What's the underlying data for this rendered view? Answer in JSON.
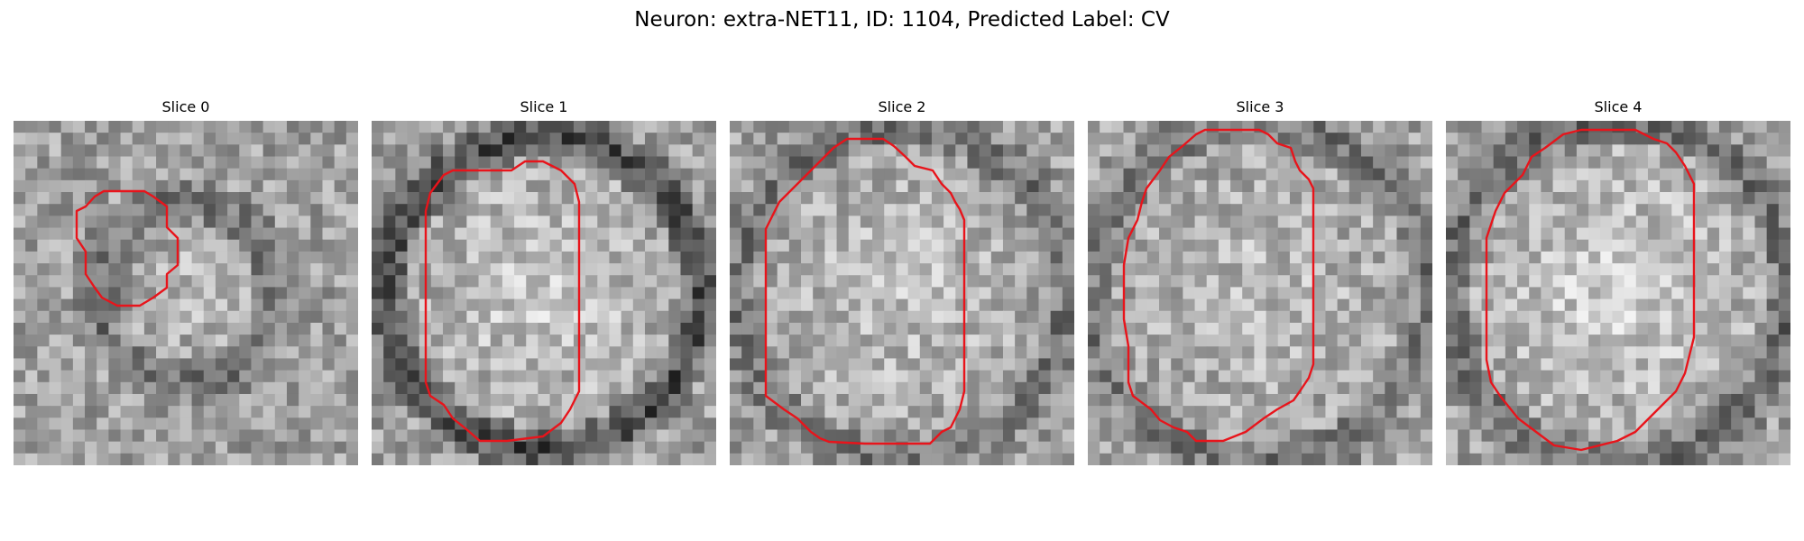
{
  "figure": {
    "title": "Neuron: extra-NET11, ID: 1104, Predicted Label: CV",
    "contour_color": "#e8141b"
  },
  "slices": [
    {
      "label": "Slice 0"
    },
    {
      "label": "Slice 1"
    },
    {
      "label": "Slice 2"
    },
    {
      "label": "Slice 3"
    },
    {
      "label": "Slice 4"
    }
  ]
}
